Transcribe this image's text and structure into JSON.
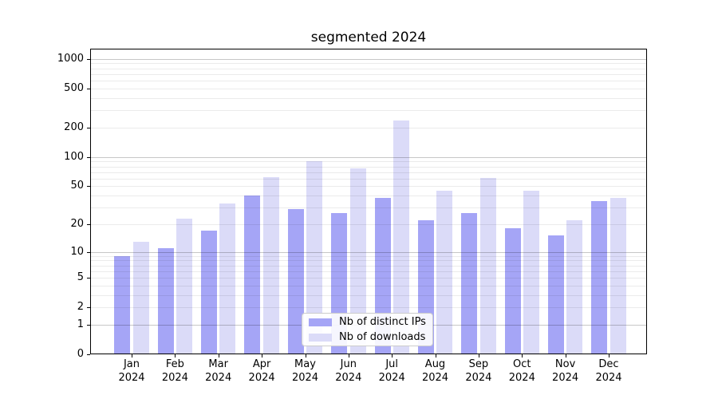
{
  "chart": {
    "background": "#ffffff",
    "spine_color": "#000000",
    "grid_major_rgba": "rgba(0,0,0,0.22)",
    "grid_minor_rgba": "rgba(0,0,0,0.08)"
  },
  "legend": {
    "entries": [
      {
        "label": "Nb of distinct IPs",
        "color": "#a5a5f6"
      },
      {
        "label": "Nb of downloads",
        "color": "#dbdbf8"
      }
    ]
  },
  "chart_data": {
    "type": "bar",
    "title": "segmented 2024",
    "categories": [
      "Jan",
      "Feb",
      "Mar",
      "Apr",
      "May",
      "Jun",
      "Jul",
      "Aug",
      "Sep",
      "Oct",
      "Nov",
      "Dec"
    ],
    "category_year": "2024",
    "series": [
      {
        "name": "Nb of distinct IPs",
        "color": "#a5a5f6",
        "values": [
          9,
          11,
          17,
          40,
          29,
          26,
          38,
          22,
          26,
          18,
          15,
          35
        ]
      },
      {
        "name": "Nb of downloads",
        "color": "#dbdbf8",
        "values": [
          13,
          23,
          33,
          62,
          90,
          77,
          238,
          45,
          61,
          45,
          22,
          38
        ]
      }
    ],
    "xlabel": "",
    "ylabel": "",
    "yscale": "log1p",
    "yticks": [
      0,
      1,
      2,
      5,
      10,
      20,
      50,
      100,
      200,
      500,
      1000
    ],
    "grid_major_at": [
      1,
      10,
      100,
      1000
    ],
    "ylim": [
      0,
      1270
    ],
    "grid": true,
    "legend_position": "lower center"
  }
}
